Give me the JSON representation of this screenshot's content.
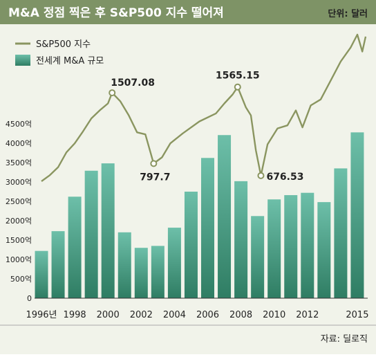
{
  "header": {
    "title": "M&A 정점 찍은 후 S&P500 지수 떨어져",
    "unit": "단위: 달러"
  },
  "source": "자료: 딜로직",
  "colors": {
    "title_bar": "#7e9366",
    "background": "#f1f3ea",
    "line": "#8a9560",
    "bar_top": "#6dbfa9",
    "bar_bottom": "#2f7d63",
    "text": "#222222"
  },
  "chart_data": {
    "type": "bar+line",
    "title": "M&A 정점 찍은 후 S&P500 지수 떨어져",
    "unit_label": "단위: 달러",
    "legend": [
      "S&P500 지수",
      "전세계 M&A 규모"
    ],
    "y_ticks": [
      "0",
      "500억",
      "1000억",
      "1500억",
      "2000억",
      "2500억",
      "3000억",
      "3500억",
      "4000억",
      "4500억"
    ],
    "ylim": [
      0,
      4500
    ],
    "x_tick_labels": [
      "1996년",
      "1998",
      "2000",
      "2002",
      "2004",
      "2006",
      "2008",
      "2010",
      "2012",
      "2015"
    ],
    "series": [
      {
        "name": "전세계 M&A 규모",
        "type": "bar",
        "x": [
          1996,
          1997,
          1998,
          1999,
          2000,
          2001,
          2002,
          2003,
          2004,
          2005,
          2006,
          2007,
          2008,
          2009,
          2010,
          2011,
          2012,
          2013,
          2014,
          2015
        ],
        "values": [
          1220,
          1730,
          2620,
          3290,
          3480,
          1700,
          1300,
          1350,
          1820,
          2750,
          3620,
          4210,
          3020,
          2120,
          2550,
          2660,
          2720,
          2480,
          3350,
          4280
        ]
      },
      {
        "name": "S&P500 지수",
        "type": "line",
        "x": [
          1996.0,
          1996.5,
          1997.0,
          1997.5,
          1998.0,
          1998.5,
          1999.0,
          1999.5,
          2000.0,
          2000.25,
          2000.75,
          2001.25,
          2001.75,
          2002.25,
          2002.75,
          2003.25,
          2003.75,
          2004.5,
          2005.5,
          2006.5,
          2007.0,
          2007.5,
          2007.8,
          2008.3,
          2008.6,
          2008.9,
          2009.2,
          2009.6,
          2010.2,
          2010.8,
          2011.3,
          2011.7,
          2012.2,
          2012.8,
          2013.4,
          2014.0,
          2014.6,
          2015.0,
          2015.3,
          2015.5
        ],
        "values": [
          620,
          680,
          760,
          910,
          1000,
          1120,
          1250,
          1330,
          1400,
          1507.08,
          1420,
          1280,
          1110,
          1090,
          797.7,
          860,
          1000,
          1100,
          1220,
          1300,
          1400,
          1490,
          1565.15,
          1360,
          1280,
          930,
          676.53,
          990,
          1150,
          1180,
          1330,
          1160,
          1380,
          1440,
          1630,
          1820,
          1960,
          2090,
          1920,
          2070
        ]
      }
    ],
    "annotations": [
      {
        "x": 2000.25,
        "value": 1507.08,
        "label": "1507.08"
      },
      {
        "x": 2002.75,
        "value": 797.7,
        "label": "797.7"
      },
      {
        "x": 2007.8,
        "value": 1565.15,
        "label": "1565.15"
      },
      {
        "x": 2009.2,
        "value": 676.53,
        "label": "676.53"
      }
    ]
  }
}
